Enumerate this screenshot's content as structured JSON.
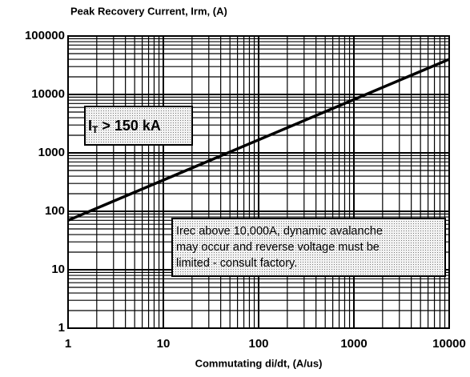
{
  "chart_data": {
    "type": "line",
    "ylabel": "Peak Recovery Current, Irm, (A)",
    "xlabel": "Commutating di/dt, (A/us)",
    "log_x": true,
    "log_y": true,
    "grid": true,
    "xlim": [
      1,
      10000
    ],
    "xticks": [
      1,
      10,
      100,
      1000,
      10000
    ],
    "ylim": [
      1,
      100000
    ],
    "yticks": [
      1,
      10,
      100,
      1000,
      10000,
      100000
    ],
    "series": [
      {
        "name": "IT > 150 kA",
        "color": "#000000",
        "x": [
          1,
          10000
        ],
        "values": [
          70,
          40000
        ]
      }
    ],
    "annotations": [
      {
        "main": "I",
        "subscript": "T",
        "text": " > 150 kA"
      },
      {
        "lines": [
          "Irec above 10,000A, dynamic avalanche",
          "may occur and reverse voltage must be",
          "limited - consult factory."
        ]
      }
    ]
  }
}
